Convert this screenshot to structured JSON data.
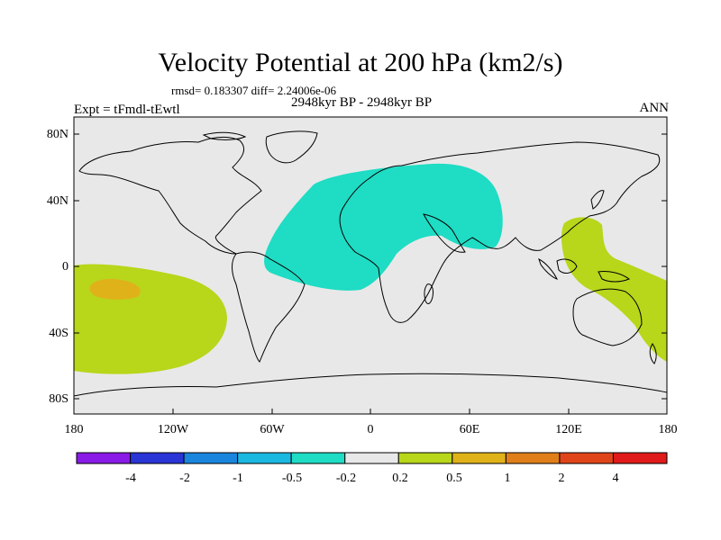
{
  "title": "Velocity Potential at 200 hPa (km2/s)",
  "stats_line": "rmsd= 0.183307 diff= 2.24006e-06",
  "experiment_label": "Expt = tFmdl-tEwtl",
  "period_label": "2948kyr BP - 2948kyr BP",
  "season_label": "ANN",
  "latitude_ticks": [
    "80N",
    "40N",
    "0",
    "40S",
    "80S"
  ],
  "longitude_ticks": [
    "180",
    "120W",
    "60W",
    "0",
    "60E",
    "120E",
    "180"
  ],
  "colorbar": {
    "labels": [
      "-4",
      "-2",
      "-1",
      "-0.5",
      "-0.2",
      "0.2",
      "0.5",
      "1",
      "2",
      "4"
    ],
    "colors": [
      "#8a1ae6",
      "#2a35d6",
      "#1a85dc",
      "#1ab8e0",
      "#1fdcc4",
      "#e8e8e8",
      "#b8d61a",
      "#e0b21a",
      "#e07f1a",
      "#e0451a",
      "#e01a1a"
    ]
  },
  "map_colors": {
    "background": "#e8e8e8",
    "negative_anomaly": "#1fdcc4",
    "positive_anomaly": "#b8d61a",
    "strong_positive": "#e0b21a",
    "coast": "#000000"
  }
}
